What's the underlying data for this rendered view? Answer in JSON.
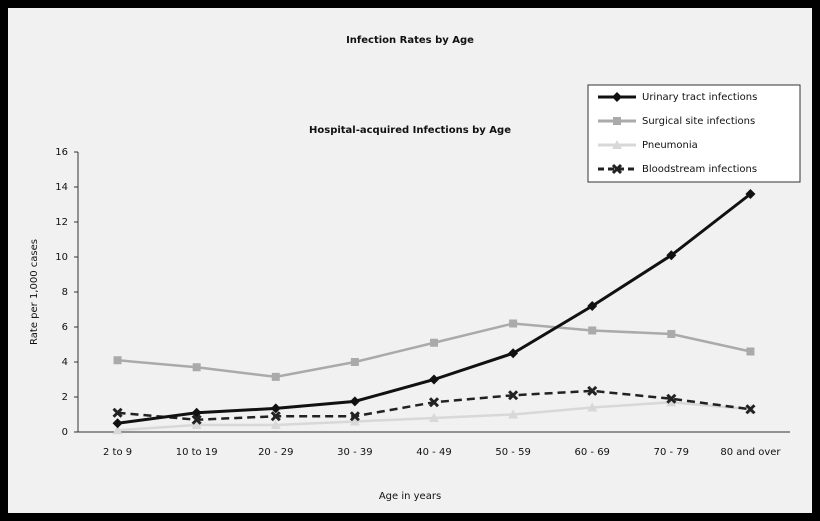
{
  "chart_data": {
    "type": "line",
    "title": "Infection Rates by Age",
    "subtitle": "Hospital-acquired Infections by Age",
    "x_label": "Age in years",
    "y_label": "Rate per 1,000 cases",
    "categories": [
      "2 to 9",
      "10 to 19",
      "20 - 29",
      "30 - 39",
      "40 - 49",
      "50 - 59",
      "60 - 69",
      "70 - 79",
      "80 and over"
    ],
    "series": [
      {
        "name": "Urinary tract infections",
        "color": "#111111",
        "line_style": "solid",
        "marker": "diamond",
        "values": [
          0.5,
          1.1,
          1.35,
          1.75,
          3.0,
          4.5,
          7.2,
          10.1,
          13.6
        ]
      },
      {
        "name": "Surgical site infections",
        "color": "#aaaaaa",
        "line_style": "solid",
        "marker": "square",
        "values": [
          4.1,
          3.7,
          3.15,
          4.0,
          5.1,
          6.2,
          5.8,
          5.6,
          4.6
        ]
      },
      {
        "name": "Pneumonia",
        "color": "#d8d8d8",
        "line_style": "solid",
        "marker": "triangle",
        "values": [
          0.1,
          0.4,
          0.4,
          0.6,
          0.8,
          1.0,
          1.4,
          1.7,
          1.3
        ]
      },
      {
        "name": "Bloodstream infections",
        "color": "#222222",
        "line_style": "dashed",
        "marker": "x",
        "values": [
          1.1,
          0.7,
          0.9,
          0.9,
          1.7,
          2.1,
          2.35,
          1.9,
          1.3
        ]
      }
    ],
    "ylim": [
      0,
      16
    ],
    "yticks": [
      0,
      2,
      4,
      6,
      8,
      10,
      12,
      14,
      16
    ],
    "grid": false,
    "legend": "top-right"
  }
}
